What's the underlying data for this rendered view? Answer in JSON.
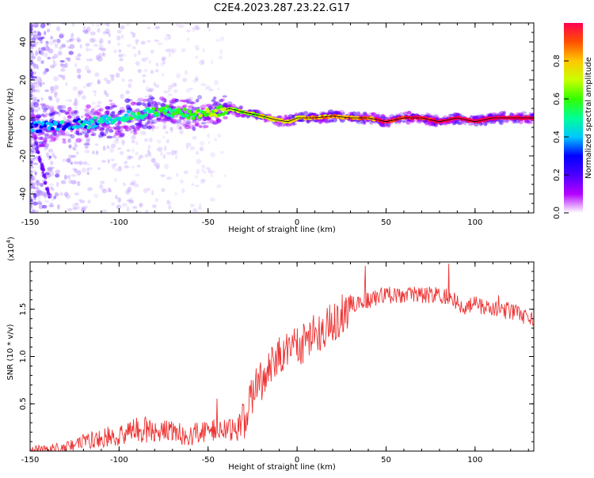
{
  "title": "C2E4.2023.287.23.22.G17",
  "chart_data": [
    {
      "type": "heatmap",
      "xlabel": "Height of straight line (km)",
      "ylabel": "Frequency (Hz)",
      "xlim": [
        -150,
        133
      ],
      "ylim": [
        -50,
        50
      ],
      "xticks": [
        -150,
        -100,
        -50,
        0,
        50,
        100
      ],
      "yticks": [
        -40,
        -20,
        0,
        20,
        40
      ],
      "colorbar": {
        "label": "Normalized spectral amplitude",
        "range": [
          0,
          1
        ],
        "ticks": [
          "0.0",
          "0.2",
          "0.4",
          "0.6",
          "0.8"
        ],
        "colors": [
          "#ffffff",
          "#b400ff",
          "#4b00ff",
          "#0000ff",
          "#00c8ff",
          "#00ff96",
          "#32ff00",
          "#c8ff00",
          "#ffc800",
          "#ff5000",
          "#ff0050"
        ]
      },
      "ridge": {
        "x": [
          -150,
          -130,
          -110,
          -90,
          -75,
          -60,
          -45,
          -38,
          -30,
          -20,
          -12,
          -5,
          0,
          10,
          20,
          30,
          40,
          50,
          60,
          70,
          80,
          90,
          100,
          110,
          120,
          133
        ],
        "y": [
          -5,
          -4,
          -2,
          2,
          4,
          2,
          3,
          5,
          3,
          1,
          -1,
          -2,
          0,
          0,
          1,
          0,
          0,
          -2,
          0,
          0,
          -2,
          0,
          -2,
          0,
          0,
          0
        ]
      }
    },
    {
      "type": "line",
      "xlabel": "Height of straight line (km)",
      "ylabel": "SNR (10 * v/v)",
      "y_multiplier": "(x10",
      "y_multiplier_exp": "4",
      "y_multiplier_close": ")",
      "xlim": [
        -150,
        133
      ],
      "ylim": [
        0,
        2.0
      ],
      "xticks": [
        -150,
        -100,
        -50,
        0,
        50,
        100
      ],
      "yticks": [
        "0.5",
        "1.0",
        "1.5"
      ],
      "color": "#ee3333",
      "series": {
        "x": [
          -150,
          -140,
          -130,
          -120,
          -110,
          -100,
          -90,
          -80,
          -70,
          -60,
          -50,
          -45,
          -40,
          -35,
          -32,
          -28,
          -25,
          -20,
          -15,
          -10,
          -5,
          0,
          5,
          10,
          15,
          20,
          25,
          30,
          40,
          50,
          60,
          70,
          80,
          88,
          92,
          95,
          100,
          110,
          120,
          125,
          130,
          133
        ],
        "y": [
          0.02,
          0.02,
          0.04,
          0.1,
          0.14,
          0.18,
          0.22,
          0.2,
          0.2,
          0.18,
          0.2,
          0.25,
          0.2,
          0.22,
          0.25,
          0.4,
          0.6,
          0.75,
          0.9,
          1.0,
          1.05,
          1.1,
          1.15,
          1.25,
          1.3,
          1.35,
          1.45,
          1.55,
          1.6,
          1.65,
          1.65,
          1.65,
          1.65,
          1.62,
          1.5,
          1.52,
          1.55,
          1.5,
          1.48,
          1.45,
          1.4,
          1.4
        ]
      }
    }
  ]
}
